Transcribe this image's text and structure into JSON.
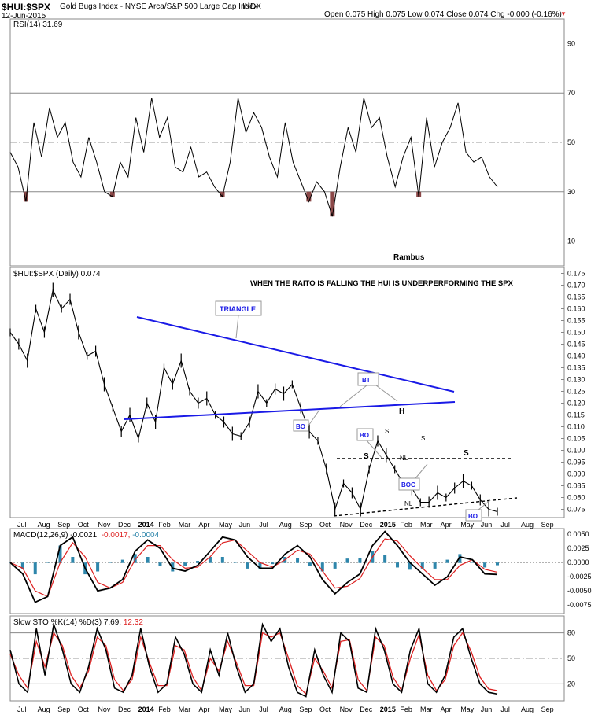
{
  "header": {
    "symbol": "$HUI:$SPX",
    "description": "Gold Bugs Index - NYSE Arca/S&P 500 Large Cap Index",
    "exchange": "INDX",
    "date": "12-Jun-2015",
    "ohlc_text": "Open 0.075  High 0.075  Low 0.074  Close 0.074  Chg -0.000 (-0.16%)"
  },
  "colors": {
    "price": "#000000",
    "trendline": "#1a1ae6",
    "macd_hist": "#2e86ab",
    "signal": "#d22",
    "oversold_fill": "#8b4848",
    "grid": "#bbbbbb",
    "annotation_text": "#1a1ae6"
  },
  "chart_data": [
    {
      "type": "line",
      "panel": "rsi",
      "legend": "RSI(14) 31.69",
      "watermark": "Rambus",
      "ylim": [
        0,
        100
      ],
      "yticks": [
        10,
        30,
        50,
        70,
        90
      ],
      "reference_lines": [
        30,
        50,
        70
      ],
      "series": [
        {
          "name": "RSI(14)",
          "values": [
            46,
            40,
            26,
            58,
            44,
            64,
            52,
            58,
            42,
            36,
            52,
            42,
            30,
            28,
            42,
            36,
            60,
            46,
            68,
            52,
            60,
            40,
            38,
            48,
            36,
            38,
            32,
            28,
            42,
            68,
            54,
            62,
            56,
            44,
            36,
            58,
            42,
            34,
            26,
            34,
            30,
            20,
            40,
            56,
            46,
            68,
            56,
            60,
            44,
            32,
            44,
            52,
            28,
            60,
            40,
            50,
            56,
            66,
            46,
            42,
            44,
            36,
            32
          ]
        }
      ]
    },
    {
      "type": "line",
      "panel": "price",
      "legend": "$HUI:$SPX (Daily) 0.074",
      "title": "WHEN THE RAITO IS FALLING THE HUI IS UNDERPERFORMING THE SPX",
      "ylim": [
        0.0715,
        0.1775
      ],
      "yticks": [
        0.075,
        0.08,
        0.085,
        0.09,
        0.095,
        0.1,
        0.105,
        0.11,
        0.115,
        0.12,
        0.125,
        0.13,
        0.135,
        0.14,
        0.145,
        0.15,
        0.155,
        0.16,
        0.165,
        0.17,
        0.175
      ],
      "x_labels": [
        "Jul",
        "Aug",
        "Sep",
        "Oct",
        "Nov",
        "Dec",
        "2014",
        "Feb",
        "Mar",
        "Apr",
        "May",
        "Jun",
        "Jul",
        "Aug",
        "Sep",
        "Oct",
        "Nov",
        "Dec",
        "2015",
        "Feb",
        "Mar",
        "Apr",
        "May",
        "Jun",
        "Jul",
        "Aug",
        "Sep"
      ],
      "series": [
        {
          "name": "$HUI:$SPX",
          "values": [
            0.15,
            0.145,
            0.138,
            0.16,
            0.15,
            0.168,
            0.16,
            0.164,
            0.15,
            0.14,
            0.142,
            0.128,
            0.118,
            0.108,
            0.115,
            0.105,
            0.12,
            0.112,
            0.135,
            0.128,
            0.138,
            0.125,
            0.12,
            0.122,
            0.115,
            0.112,
            0.107,
            0.106,
            0.112,
            0.125,
            0.12,
            0.126,
            0.124,
            0.128,
            0.118,
            0.108,
            0.104,
            0.092,
            0.075,
            0.086,
            0.082,
            0.075,
            0.092,
            0.104,
            0.098,
            0.092,
            0.086,
            0.084,
            0.078,
            0.078,
            0.082,
            0.08,
            0.084,
            0.087,
            0.085,
            0.079,
            0.075,
            0.074
          ]
        }
      ],
      "annotations": [
        "TRIANGLE",
        "BT",
        "BO",
        "BO",
        "BOG",
        "BO",
        "H",
        "S",
        "S",
        "S",
        "S",
        "NL",
        "NL"
      ]
    },
    {
      "type": "line",
      "panel": "macd",
      "legend_parts": [
        "MACD(12,26,9) -0.0021,",
        " -0.0017,",
        " -0.0004"
      ],
      "ylim": [
        -0.009,
        0.006
      ],
      "yticks": [
        0.005,
        0.0025,
        0.0,
        -0.0025,
        -0.005,
        -0.0075
      ],
      "ytick_labels": [
        "0.0050",
        "0.0025",
        "0.0000",
        "-0.0025",
        "-0.0050",
        "-0.0075"
      ],
      "series": [
        {
          "name": "MACD(12,26,9)",
          "values": [
            0.0,
            -0.002,
            -0.007,
            -0.006,
            0.003,
            0.0045,
            -0.001,
            -0.005,
            -0.0045,
            -0.003,
            0.002,
            0.004,
            0.0025,
            -0.001,
            -0.0015,
            -0.0005,
            0.002,
            0.0045,
            0.004,
            0.001,
            -0.001,
            -0.001,
            0.0015,
            0.003,
            0.001,
            -0.003,
            -0.0055,
            -0.0035,
            -0.002,
            0.003,
            0.0055,
            0.003,
            0.0,
            -0.002,
            -0.004,
            -0.0025,
            0.001,
            0.0005,
            -0.002,
            -0.0021
          ]
        },
        {
          "name": "Signal",
          "values": [
            0.0,
            -0.001,
            -0.005,
            -0.006,
            0.0,
            0.0035,
            0.001,
            -0.0035,
            -0.0045,
            -0.0035,
            0.0005,
            0.003,
            0.003,
            0.0005,
            -0.001,
            -0.0008,
            0.001,
            0.0035,
            0.004,
            0.002,
            0.0,
            -0.0008,
            0.0005,
            0.0022,
            0.0015,
            -0.0015,
            -0.0045,
            -0.0042,
            -0.0028,
            0.001,
            0.0042,
            0.0038,
            0.0012,
            -0.001,
            -0.003,
            -0.003,
            -0.0005,
            0.0005,
            -0.0012,
            -0.0017
          ]
        }
      ]
    },
    {
      "type": "line",
      "panel": "sto",
      "legend_parts": [
        "Slow STO %K(14) %D(3) 7.69,",
        " 12.32"
      ],
      "ylim": [
        0,
        100
      ],
      "yticks": [
        20,
        50,
        80
      ],
      "reference_lines": [
        20,
        50,
        80
      ],
      "x_labels": [
        "Jul",
        "Aug",
        "Sep",
        "Oct",
        "Nov",
        "Dec",
        "2014",
        "Feb",
        "Mar",
        "Apr",
        "May",
        "Jun",
        "Jul",
        "Aug",
        "Sep",
        "Oct",
        "Nov",
        "Dec",
        "2015",
        "Feb",
        "Mar",
        "Apr",
        "May",
        "Jun",
        "Jul",
        "Aug",
        "Sep"
      ],
      "series": [
        {
          "name": "%K",
          "values": [
            60,
            20,
            10,
            85,
            30,
            90,
            60,
            20,
            10,
            40,
            85,
            60,
            15,
            10,
            30,
            85,
            40,
            10,
            20,
            75,
            55,
            20,
            10,
            60,
            30,
            80,
            40,
            10,
            20,
            90,
            70,
            85,
            40,
            10,
            5,
            60,
            30,
            10,
            80,
            70,
            15,
            10,
            85,
            60,
            20,
            10,
            60,
            85,
            20,
            10,
            30,
            75,
            85,
            50,
            20,
            10,
            8
          ]
        },
        {
          "name": "%D",
          "values": [
            55,
            30,
            15,
            70,
            40,
            80,
            65,
            30,
            15,
            35,
            75,
            65,
            25,
            12,
            25,
            75,
            45,
            18,
            18,
            65,
            60,
            28,
            12,
            50,
            35,
            70,
            45,
            18,
            18,
            80,
            75,
            80,
            50,
            18,
            8,
            50,
            35,
            15,
            70,
            72,
            25,
            12,
            75,
            65,
            28,
            12,
            50,
            78,
            30,
            12,
            25,
            65,
            80,
            58,
            28,
            14,
            12
          ]
        }
      ]
    }
  ]
}
